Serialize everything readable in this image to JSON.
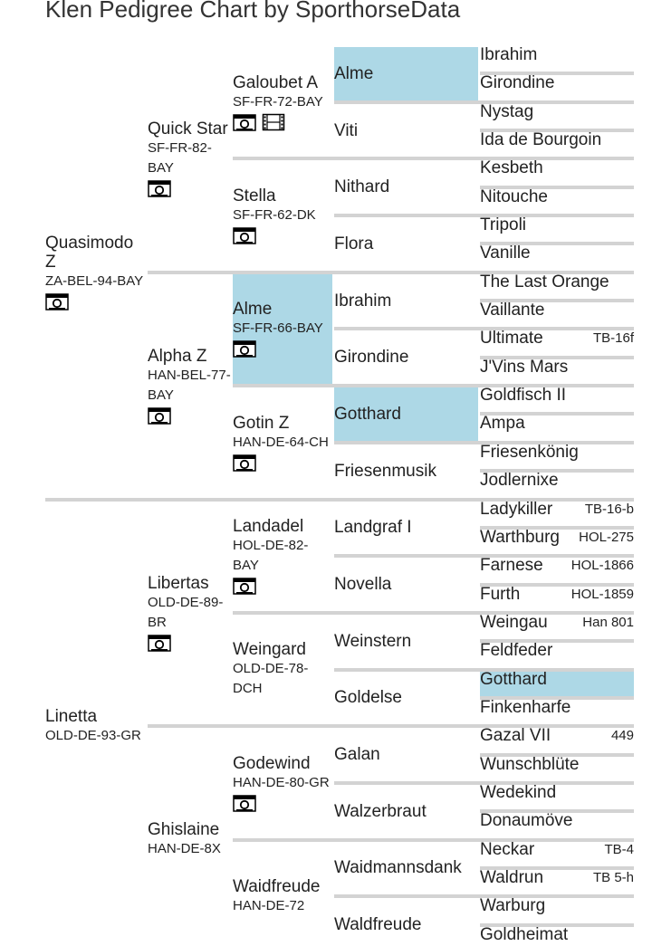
{
  "title": "Klen Pedigree Chart by SporthorseData",
  "highlight_color": "#add8e6",
  "gen1": [
    {
      "name": "Quasimodo Z",
      "reg": "ZA-BEL-94-BAY",
      "icons": [
        "camera-icon"
      ]
    },
    {
      "name": "Linetta",
      "reg": "OLD-DE-93-GR",
      "icons": []
    }
  ],
  "gen2": [
    {
      "name": "Quick Star",
      "reg": "SF-FR-82-BAY",
      "icons": [
        "camera-icon"
      ]
    },
    {
      "name": "Alpha Z",
      "reg": "HAN-BEL-77-BAY",
      "icons": [
        "camera-icon"
      ]
    },
    {
      "name": "Libertas",
      "reg": "OLD-DE-89-BR",
      "icons": [
        "camera-icon"
      ]
    },
    {
      "name": "Ghislaine",
      "reg": "HAN-DE-8X",
      "icons": []
    }
  ],
  "gen3": [
    {
      "name": "Galoubet A",
      "reg": "SF-FR-72-BAY",
      "icons": [
        "camera-icon",
        "film-icon"
      ]
    },
    {
      "name": "Stella",
      "reg": "SF-FR-62-DK",
      "icons": [
        "camera-icon"
      ]
    },
    {
      "name": "Alme",
      "reg": "SF-FR-66-BAY",
      "icons": [
        "camera-icon"
      ],
      "highlight": true
    },
    {
      "name": "Gotin Z",
      "reg": "HAN-DE-64-CH",
      "icons": [
        "camera-icon"
      ]
    },
    {
      "name": "Landadel",
      "reg": "HOL-DE-82-BAY",
      "icons": [
        "camera-icon"
      ]
    },
    {
      "name": "Weingard",
      "reg": "OLD-DE-78-DCH",
      "icons": []
    },
    {
      "name": "Godewind",
      "reg": "HAN-DE-80-GR",
      "icons": [
        "camera-icon"
      ]
    },
    {
      "name": "Waidfreude",
      "reg": "HAN-DE-72",
      "icons": []
    }
  ],
  "gen4": [
    {
      "name": "Alme",
      "highlight": true
    },
    {
      "name": "Viti"
    },
    {
      "name": "Nithard"
    },
    {
      "name": "Flora"
    },
    {
      "name": "Ibrahim"
    },
    {
      "name": "Girondine"
    },
    {
      "name": "Gotthard",
      "highlight": true
    },
    {
      "name": "Friesenmusik"
    },
    {
      "name": "Landgraf I"
    },
    {
      "name": "Novella"
    },
    {
      "name": "Weinstern"
    },
    {
      "name": "Goldelse"
    },
    {
      "name": "Galan"
    },
    {
      "name": "Walzerbraut"
    },
    {
      "name": "Waidmannsdank"
    },
    {
      "name": "Waldfreude"
    }
  ],
  "gen5": [
    {
      "name": "Ibrahim",
      "reg": ""
    },
    {
      "name": "Girondine",
      "reg": ""
    },
    {
      "name": "Nystag",
      "reg": ""
    },
    {
      "name": "Ida de Bourgoin",
      "reg": ""
    },
    {
      "name": "Kesbeth",
      "reg": ""
    },
    {
      "name": "Nitouche",
      "reg": ""
    },
    {
      "name": "Tripoli",
      "reg": ""
    },
    {
      "name": "Vanille",
      "reg": ""
    },
    {
      "name": "The Last Orange",
      "reg": ""
    },
    {
      "name": "Vaillante",
      "reg": ""
    },
    {
      "name": "Ultimate",
      "reg": "TB-16f"
    },
    {
      "name": "J'Vins Mars",
      "reg": ""
    },
    {
      "name": "Goldfisch II",
      "reg": ""
    },
    {
      "name": "Ampa",
      "reg": ""
    },
    {
      "name": "Friesenkönig",
      "reg": ""
    },
    {
      "name": "Jodlernixe",
      "reg": ""
    },
    {
      "name": "Ladykiller",
      "reg": "TB-16-b"
    },
    {
      "name": "Warthburg",
      "reg": "HOL-275"
    },
    {
      "name": "Farnese",
      "reg": "HOL-1866"
    },
    {
      "name": "Furth",
      "reg": "HOL-1859"
    },
    {
      "name": "Weingau",
      "reg": "Han 801"
    },
    {
      "name": "Feldfeder",
      "reg": ""
    },
    {
      "name": "Gotthard",
      "reg": "",
      "highlight": true
    },
    {
      "name": "Finkenharfe",
      "reg": ""
    },
    {
      "name": "Gazal VII",
      "reg": "449"
    },
    {
      "name": "Wunschblüte",
      "reg": ""
    },
    {
      "name": "Wedekind",
      "reg": ""
    },
    {
      "name": "Donaumöve",
      "reg": ""
    },
    {
      "name": "Neckar",
      "reg": "TB-4"
    },
    {
      "name": "Waldrun",
      "reg": "TB 5-h"
    },
    {
      "name": "Warburg",
      "reg": ""
    },
    {
      "name": "Goldheimat",
      "reg": ""
    }
  ]
}
